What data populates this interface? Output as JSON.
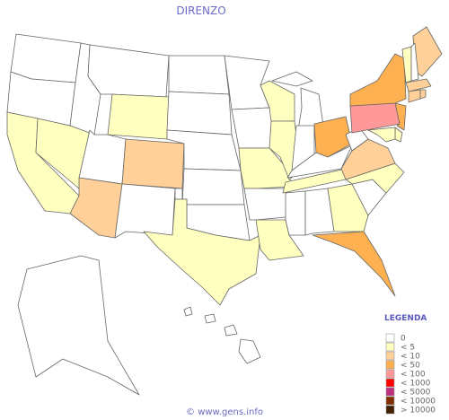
{
  "map": {
    "title": "DIRENZO",
    "legend": {
      "title": "LEGENDA",
      "items": [
        {
          "label": "0",
          "color": "#ffffff"
        },
        {
          "label": "< 5",
          "color": "#ffffc0"
        },
        {
          "label": "< 10",
          "color": "#ffd098"
        },
        {
          "label": "< 50",
          "color": "#ffb050"
        },
        {
          "label": "< 100",
          "color": "#ff9898"
        },
        {
          "label": "< 1000",
          "color": "#ff0000"
        },
        {
          "label": "< 5000",
          "color": "#c03080"
        },
        {
          "label": "< 10000",
          "color": "#803000"
        },
        {
          "label": "> 10000",
          "color": "#402000"
        }
      ]
    },
    "footer": "© www.gens.info"
  }
}
